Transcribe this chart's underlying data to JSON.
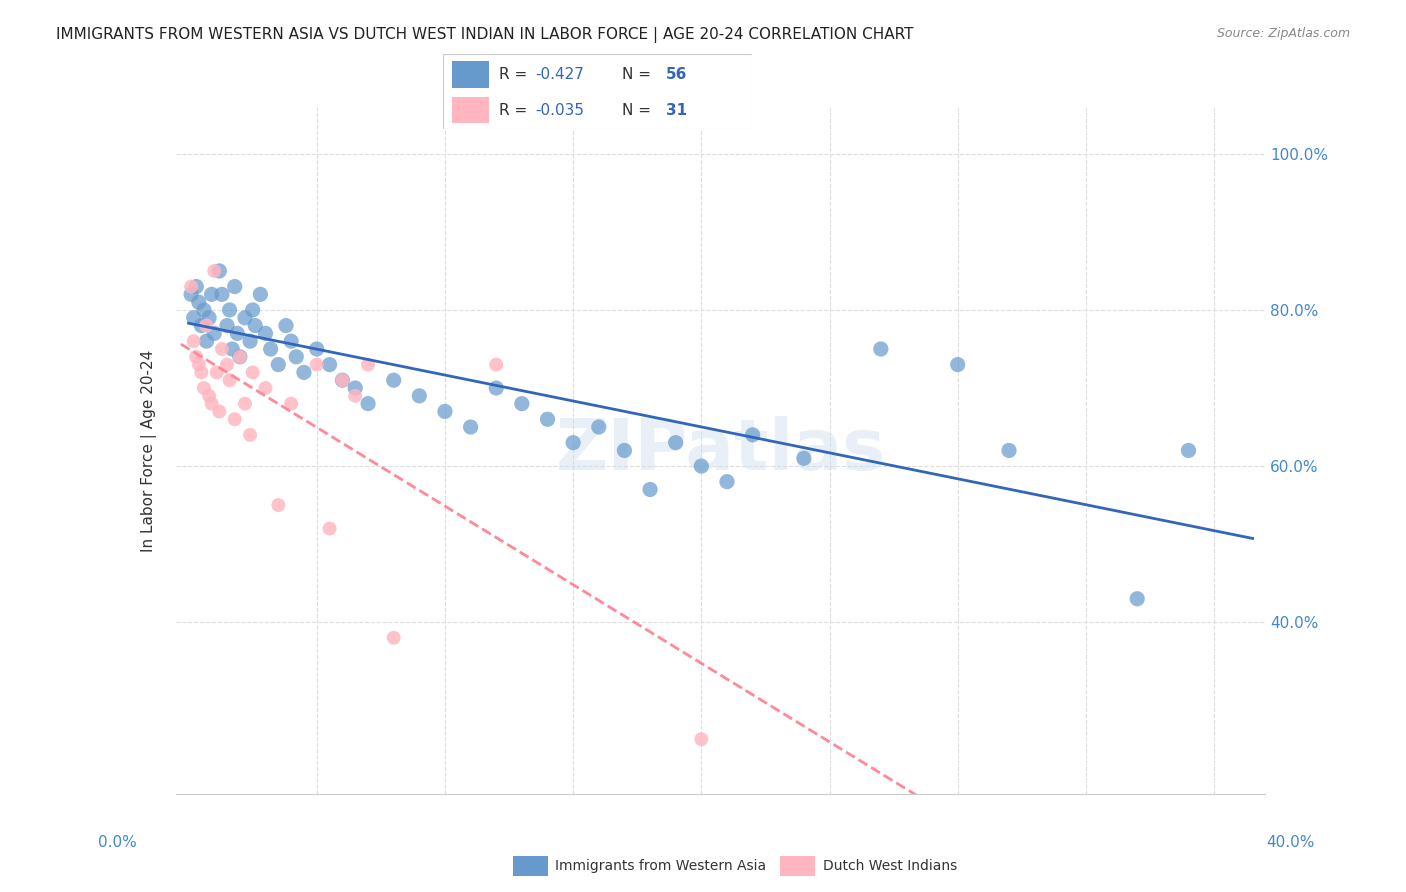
{
  "title": "IMMIGRANTS FROM WESTERN ASIA VS DUTCH WEST INDIAN IN LABOR FORCE | AGE 20-24 CORRELATION CHART",
  "source": "Source: ZipAtlas.com",
  "ylabel": "In Labor Force | Age 20-24",
  "ymin": 0.18,
  "ymax": 1.06,
  "xmin": -0.005,
  "xmax": 0.42,
  "blue_color": "#6699CC",
  "pink_color": "#FFB6C1",
  "blue_line_color": "#3366BB",
  "pink_line_color": "#FF8899",
  "r_blue": -0.427,
  "n_blue": 56,
  "r_pink": -0.035,
  "n_pink": 31,
  "legend_label_blue": "Immigrants from Western Asia",
  "legend_label_pink": "Dutch West Indians",
  "watermark": "ZIPatlas",
  "blue_points": [
    [
      0.001,
      0.82
    ],
    [
      0.002,
      0.79
    ],
    [
      0.003,
      0.83
    ],
    [
      0.004,
      0.81
    ],
    [
      0.005,
      0.78
    ],
    [
      0.006,
      0.8
    ],
    [
      0.007,
      0.76
    ],
    [
      0.008,
      0.79
    ],
    [
      0.009,
      0.82
    ],
    [
      0.01,
      0.77
    ],
    [
      0.012,
      0.85
    ],
    [
      0.013,
      0.82
    ],
    [
      0.015,
      0.78
    ],
    [
      0.016,
      0.8
    ],
    [
      0.017,
      0.75
    ],
    [
      0.018,
      0.83
    ],
    [
      0.019,
      0.77
    ],
    [
      0.02,
      0.74
    ],
    [
      0.022,
      0.79
    ],
    [
      0.024,
      0.76
    ],
    [
      0.025,
      0.8
    ],
    [
      0.026,
      0.78
    ],
    [
      0.028,
      0.82
    ],
    [
      0.03,
      0.77
    ],
    [
      0.032,
      0.75
    ],
    [
      0.035,
      0.73
    ],
    [
      0.038,
      0.78
    ],
    [
      0.04,
      0.76
    ],
    [
      0.042,
      0.74
    ],
    [
      0.045,
      0.72
    ],
    [
      0.05,
      0.75
    ],
    [
      0.055,
      0.73
    ],
    [
      0.06,
      0.71
    ],
    [
      0.065,
      0.7
    ],
    [
      0.07,
      0.68
    ],
    [
      0.08,
      0.71
    ],
    [
      0.09,
      0.69
    ],
    [
      0.1,
      0.67
    ],
    [
      0.11,
      0.65
    ],
    [
      0.12,
      0.7
    ],
    [
      0.13,
      0.68
    ],
    [
      0.14,
      0.66
    ],
    [
      0.15,
      0.63
    ],
    [
      0.16,
      0.65
    ],
    [
      0.17,
      0.62
    ],
    [
      0.18,
      0.57
    ],
    [
      0.19,
      0.63
    ],
    [
      0.2,
      0.6
    ],
    [
      0.21,
      0.58
    ],
    [
      0.22,
      0.64
    ],
    [
      0.24,
      0.61
    ],
    [
      0.27,
      0.75
    ],
    [
      0.3,
      0.73
    ],
    [
      0.32,
      0.62
    ],
    [
      0.37,
      0.43
    ],
    [
      0.39,
      0.62
    ]
  ],
  "pink_points": [
    [
      0.001,
      0.83
    ],
    [
      0.002,
      0.76
    ],
    [
      0.003,
      0.74
    ],
    [
      0.004,
      0.73
    ],
    [
      0.005,
      0.72
    ],
    [
      0.006,
      0.7
    ],
    [
      0.007,
      0.78
    ],
    [
      0.008,
      0.69
    ],
    [
      0.009,
      0.68
    ],
    [
      0.01,
      0.85
    ],
    [
      0.011,
      0.72
    ],
    [
      0.012,
      0.67
    ],
    [
      0.013,
      0.75
    ],
    [
      0.015,
      0.73
    ],
    [
      0.016,
      0.71
    ],
    [
      0.018,
      0.66
    ],
    [
      0.02,
      0.74
    ],
    [
      0.022,
      0.68
    ],
    [
      0.024,
      0.64
    ],
    [
      0.025,
      0.72
    ],
    [
      0.03,
      0.7
    ],
    [
      0.035,
      0.55
    ],
    [
      0.04,
      0.68
    ],
    [
      0.05,
      0.73
    ],
    [
      0.055,
      0.52
    ],
    [
      0.06,
      0.71
    ],
    [
      0.065,
      0.69
    ],
    [
      0.07,
      0.73
    ],
    [
      0.08,
      0.38
    ],
    [
      0.12,
      0.73
    ],
    [
      0.2,
      0.25
    ]
  ],
  "blue_size": 120,
  "pink_size": 100,
  "grid_color": "#DDDDDD",
  "axis_color": "#4488CC",
  "background_color": "#FFFFFF"
}
